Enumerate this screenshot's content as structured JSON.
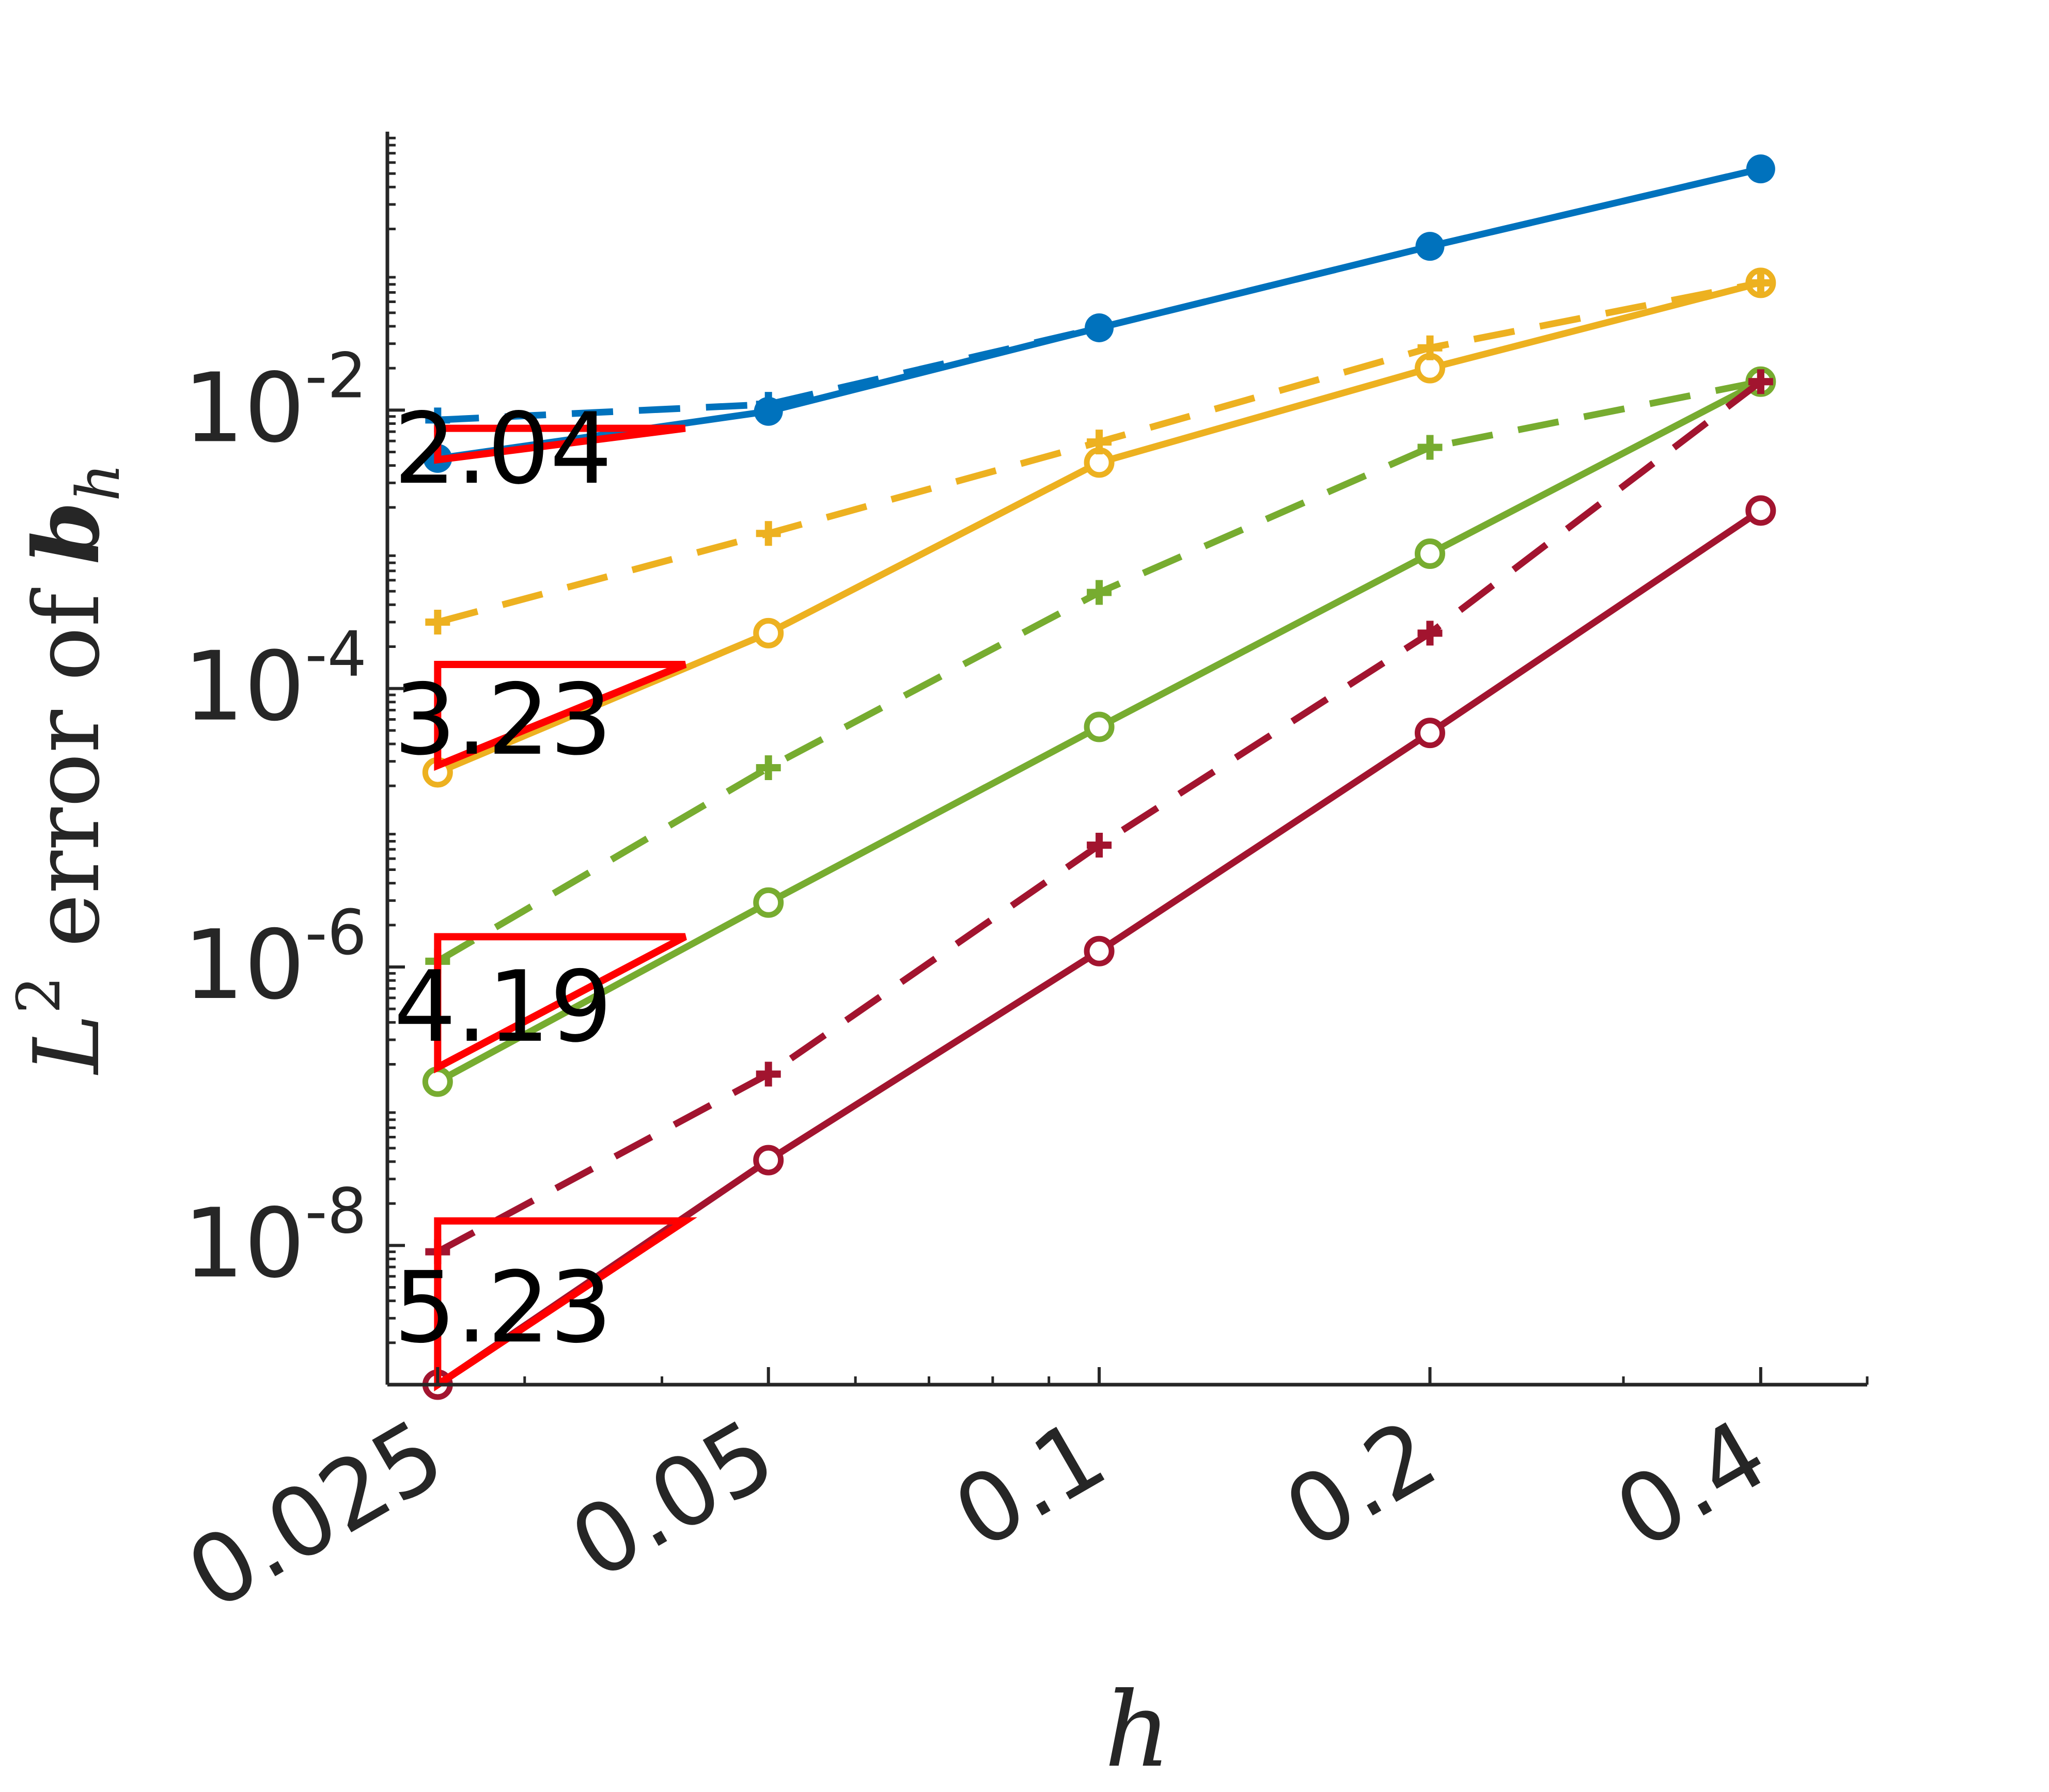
{
  "chart_data": {
    "type": "line",
    "xscale": "log",
    "yscale": "log",
    "xlim": [
      0.0225,
      0.5
    ],
    "ylim": [
      1e-09,
      1
    ],
    "xticks": [
      0.025,
      0.05,
      0.1,
      0.2,
      0.4
    ],
    "xtick_labels": [
      "0.025",
      "0.05",
      "0.1",
      "0.2",
      "0.4"
    ],
    "yticks": [
      1e-08,
      1e-06,
      0.0001,
      0.01
    ],
    "ytick_labels": [
      {
        "base": "10",
        "exp": "-8"
      },
      {
        "base": "10",
        "exp": "-6"
      },
      {
        "base": "10",
        "exp": "-4"
      },
      {
        "base": "10",
        "exp": "-2"
      }
    ],
    "xlabel": "h",
    "ylabel": {
      "pre": "L",
      "sup": "2",
      "mid": " error of ",
      "bold": "b",
      "sub": "h"
    },
    "x": [
      0.025,
      0.05,
      0.1,
      0.2,
      0.4
    ],
    "series": [
      {
        "color": "#0072BD",
        "style": "solid",
        "marker": "filled-circle",
        "values": [
          0.0045,
          0.0098,
          0.039,
          0.15,
          0.54
        ]
      },
      {
        "color": "#0072BD",
        "style": "dashed",
        "marker": "plus",
        "values": [
          0.0085,
          0.011,
          0.039,
          0.15,
          0.54
        ]
      },
      {
        "color": "#EDB120",
        "style": "solid",
        "marker": "open-circle",
        "values": [
          2.5e-05,
          0.00025,
          0.0042,
          0.02,
          0.082
        ]
      },
      {
        "color": "#EDB120",
        "style": "dashed",
        "marker": "plus",
        "values": [
          0.0003,
          0.0013,
          0.0059,
          0.028,
          0.082
        ]
      },
      {
        "color": "#77AC30",
        "style": "solid",
        "marker": "open-circle",
        "values": [
          1.5e-07,
          2.9e-06,
          5.3e-05,
          0.00093,
          0.016
        ]
      },
      {
        "color": "#77AC30",
        "style": "dashed",
        "marker": "plus",
        "values": [
          1.1e-06,
          2.7e-05,
          0.00049,
          0.0054,
          0.016
        ]
      },
      {
        "color": "#A2142F",
        "style": "solid",
        "marker": "open-circle",
        "values": [
          1e-09,
          4.1e-08,
          1.3e-06,
          4.8e-05,
          0.0019
        ]
      },
      {
        "color": "#A2142F",
        "style": "dashed",
        "marker": "plus",
        "values": [
          9e-09,
          1.7e-07,
          7.5e-06,
          0.00025,
          0.016
        ]
      }
    ],
    "slope_triangles": [
      {
        "label": "2.04",
        "x0": 0.025,
        "x1": 0.042,
        "y_low": 0.0044,
        "y_high": 0.0074
      },
      {
        "label": "3.23",
        "x0": 0.025,
        "x1": 0.042,
        "y_low": 2.8e-05,
        "y_high": 0.000149
      },
      {
        "label": "4.19",
        "x0": 0.025,
        "x1": 0.042,
        "y_low": 1.9e-07,
        "y_high": 1.65e-06
      },
      {
        "label": "5.23",
        "x0": 0.025,
        "x1": 0.042,
        "y_low": 1e-09,
        "y_high": 1.5e-08
      }
    ],
    "triangle_color": "#FF0000",
    "grid": false
  }
}
